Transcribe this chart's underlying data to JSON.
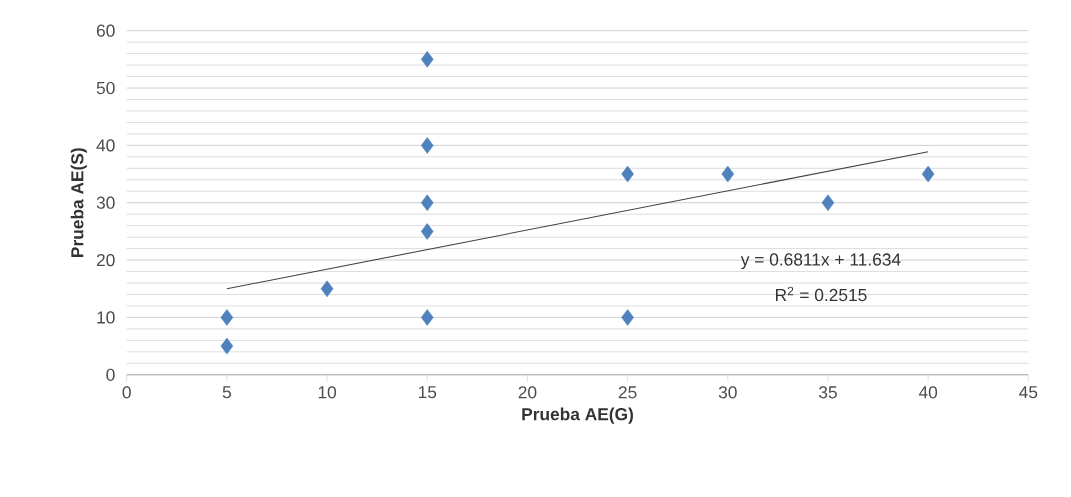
{
  "chart_data": {
    "type": "scatter",
    "xlabel": "Prueba AE(G)",
    "ylabel": "Prueba AE(S)",
    "xlim": [
      0,
      45
    ],
    "ylim": [
      0,
      60
    ],
    "xticks": [
      0,
      5,
      10,
      15,
      20,
      25,
      30,
      35,
      40,
      45
    ],
    "yticks": [
      0,
      10,
      20,
      30,
      40,
      50,
      60
    ],
    "grid": "y",
    "marker": "diamond",
    "series": [
      {
        "color": "#4f81bd",
        "x": [
          5,
          5,
          10,
          15,
          15,
          15,
          15,
          15,
          25,
          25,
          30,
          35,
          40
        ],
        "values": [
          10,
          5,
          15,
          55,
          40,
          30,
          25,
          10,
          35,
          10,
          35,
          30,
          35
        ]
      },
      {
        "type": "line",
        "color": "#404040",
        "marker": "none",
        "x": [
          5,
          40
        ],
        "values": [
          15.0,
          38.9
        ]
      }
    ],
    "annotations": [
      "y = 0.6811x + 11.634",
      "R$^{2}$ = 0.2515"
    ]
  }
}
